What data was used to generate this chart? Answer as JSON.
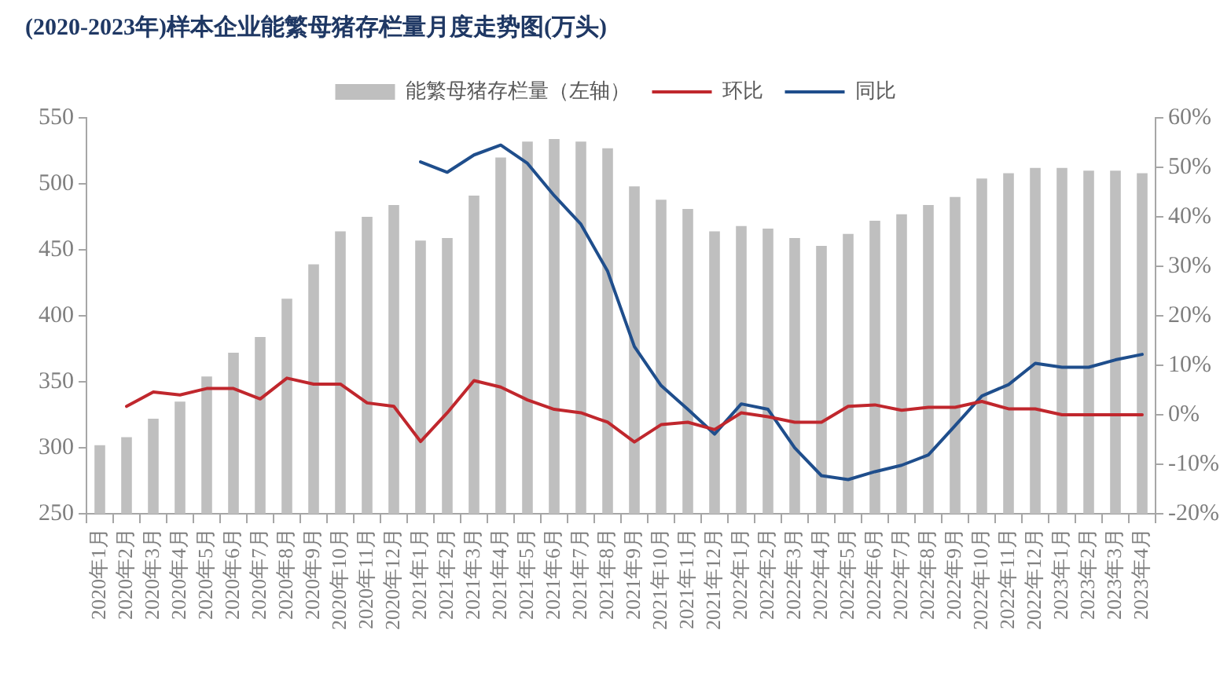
{
  "chart_data": {
    "type": "bar",
    "title": "(2020-2023年)样本企业能繁母猪存栏量月度走势图(万头)",
    "categories": [
      "2020年1月",
      "2020年2月",
      "2020年3月",
      "2020年4月",
      "2020年5月",
      "2020年6月",
      "2020年7月",
      "2020年8月",
      "2020年9月",
      "2020年10月",
      "2020年11月",
      "2020年12月",
      "2021年1月",
      "2021年2月",
      "2021年3月",
      "2021年4月",
      "2021年5月",
      "2021年6月",
      "2021年7月",
      "2021年8月",
      "2021年9月",
      "2021年10月",
      "2021年11月",
      "2021年12月",
      "2022年1月",
      "2022年2月",
      "2022年3月",
      "2022年4月",
      "2022年5月",
      "2022年6月",
      "2022年7月",
      "2022年8月",
      "2022年9月",
      "2022年10月",
      "2022年11月",
      "2022年12月",
      "2023年1月",
      "2023年2月",
      "2023年3月",
      "2023年4月"
    ],
    "series": [
      {
        "name": "能繁母猪存栏量（左轴）",
        "color": "#bfbfbf",
        "values": [
          302,
          308,
          322,
          335,
          354,
          372,
          384,
          413,
          439,
          464,
          475,
          484,
          457,
          459,
          491,
          520,
          532,
          534,
          532,
          527,
          498,
          488,
          481,
          464,
          468,
          466,
          459,
          453,
          462,
          472,
          477,
          484,
          490,
          504,
          508,
          512,
          512,
          510,
          510,
          508
        ]
      },
      {
        "name": "环比",
        "type": "line",
        "axis": "y2",
        "color": "#c0272d",
        "values": [
          null,
          1.7,
          4.6,
          4.0,
          5.3,
          5.3,
          3.2,
          7.4,
          6.2,
          6.2,
          2.4,
          1.7,
          -5.4,
          0.4,
          6.9,
          5.6,
          3.0,
          1.1,
          0.4,
          -1.5,
          -5.5,
          -2.0,
          -1.5,
          -3.0,
          0.4,
          -0.4,
          -1.5,
          -1.5,
          1.7,
          2.0,
          0.9,
          1.5,
          1.5,
          2.7,
          1.2,
          1.2,
          0,
          0,
          0,
          0
        ]
      },
      {
        "name": "同比",
        "type": "line",
        "axis": "y2",
        "color": "#1f4e8c",
        "values": [
          null,
          null,
          null,
          null,
          null,
          null,
          null,
          null,
          null,
          null,
          null,
          null,
          51.1,
          49.0,
          52.5,
          54.5,
          50.8,
          44.3,
          38.5,
          29.0,
          13.8,
          5.9,
          1.1,
          -3.9,
          2.2,
          1.1,
          -6.7,
          -12.3,
          -13.1,
          -11.5,
          -10.2,
          -8.1,
          -2.2,
          3.8,
          6.1,
          10.4,
          9.6,
          9.6,
          11.1,
          12.2
        ]
      }
    ],
    "ylim": [
      250,
      550
    ],
    "yticks": [
      250,
      300,
      350,
      400,
      450,
      500,
      550
    ],
    "y2lim": [
      -20,
      60
    ],
    "y2ticks": [
      {
        "value": -20,
        "label": "-20%"
      },
      {
        "value": -10,
        "label": "-10%"
      },
      {
        "value": 0,
        "label": "0%"
      },
      {
        "value": 10,
        "label": "10%"
      },
      {
        "value": 20,
        "label": "20%"
      },
      {
        "value": 30,
        "label": "30%"
      },
      {
        "value": 40,
        "label": "40%"
      },
      {
        "value": 50,
        "label": "50%"
      },
      {
        "value": 60,
        "label": "60%"
      }
    ],
    "legend": "top",
    "grid": false,
    "marker": "none",
    "line_style": "solid"
  }
}
